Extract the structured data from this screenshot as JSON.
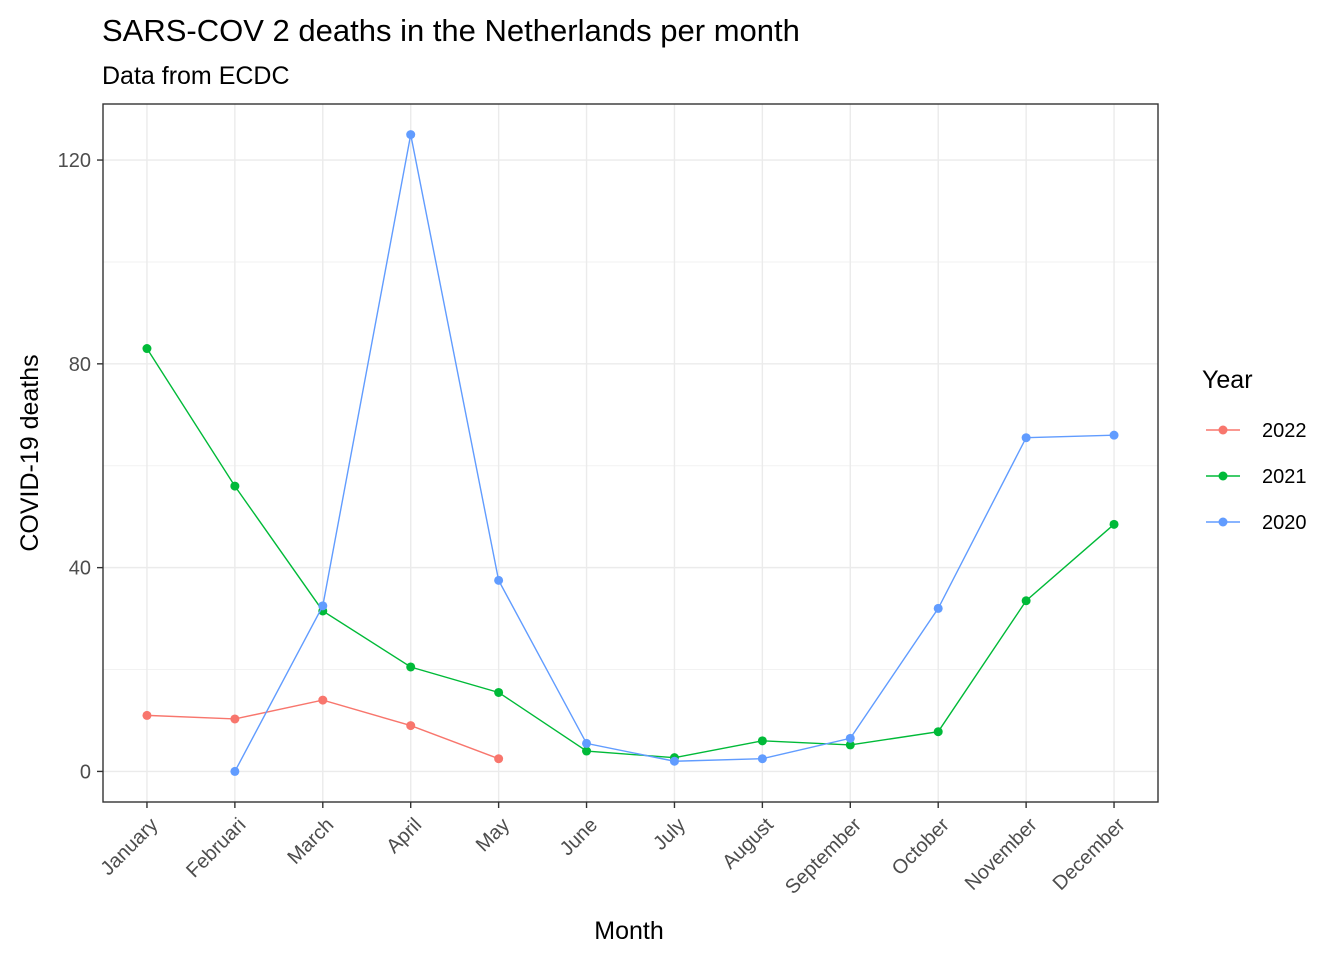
{
  "chart_data": {
    "type": "line",
    "title": "SARS-COV 2 deaths in the Netherlands per month",
    "subtitle": "Data from ECDC",
    "xlabel": "Month",
    "ylabel": "COVID-19 deaths",
    "categories": [
      "January",
      "Februari",
      "March",
      "April",
      "May",
      "June",
      "July",
      "August",
      "September",
      "October",
      "November",
      "December"
    ],
    "ylim": [
      -6,
      131
    ],
    "yticks": [
      0,
      40,
      80,
      120
    ],
    "grid": true,
    "legend": {
      "title": "Year",
      "position": "right"
    },
    "series": [
      {
        "name": "2022",
        "color": "#F8766D",
        "values": [
          11,
          10.3,
          14,
          9,
          2.5,
          null,
          null,
          null,
          null,
          null,
          null,
          null
        ]
      },
      {
        "name": "2021",
        "color": "#00BA38",
        "values": [
          83,
          56,
          31.5,
          20.5,
          15.5,
          4,
          2.7,
          6,
          5.2,
          7.8,
          33.5,
          48.5
        ]
      },
      {
        "name": "2020",
        "color": "#619CFF",
        "values": [
          null,
          0,
          32.5,
          125,
          37.5,
          5.5,
          2,
          2.5,
          6.5,
          32,
          65.5,
          66
        ]
      }
    ]
  }
}
